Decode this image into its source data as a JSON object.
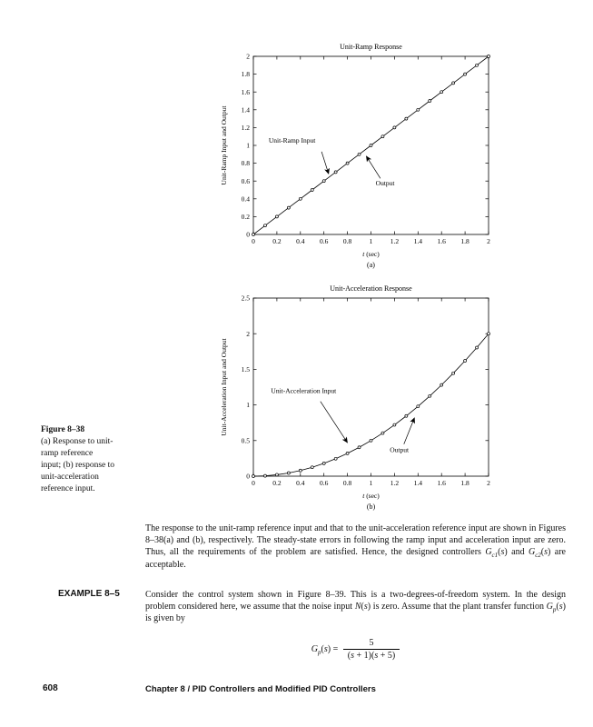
{
  "page": {
    "number": "608",
    "footer": "Chapter 8  /  PID Controllers and Modified PID Controllers"
  },
  "figure_caption": {
    "label": "Figure 8–38",
    "lines": [
      "(a) Response to unit-",
      "ramp reference",
      "input; (b) response to",
      "unit-acceleration",
      "reference input."
    ]
  },
  "paragraph1": [
    {
      "t": "The response to the unit-ramp reference input and that to the unit-acceleration reference input are shown in Figures 8–38(a) and (b), respectively. The steady-state errors in following the ramp input and acceleration input are zero. Thus, all the requirements of the problem are satisfied. Hence, the designed controllers "
    },
    {
      "t": "G",
      "i": 1
    },
    {
      "t": "c1",
      "sub": 1,
      "i": 1
    },
    {
      "t": "("
    },
    {
      "t": "s",
      "i": 1
    },
    {
      "t": ")"
    },
    {
      "t": " and "
    },
    {
      "t": "G",
      "i": 1
    },
    {
      "t": "c2",
      "sub": 1,
      "i": 1
    },
    {
      "t": "("
    },
    {
      "t": "s",
      "i": 1
    },
    {
      "t": ")"
    },
    {
      "t": " are acceptable."
    }
  ],
  "example": {
    "label": "EXAMPLE 8–5",
    "text": [
      {
        "t": "Consider the control system shown in Figure 8–39. This is a two-degrees-of-freedom system. In the design problem considered here, we assume that the noise input "
      },
      {
        "t": "N",
        "i": 1
      },
      {
        "t": "("
      },
      {
        "t": "s",
        "i": 1
      },
      {
        "t": ")"
      },
      {
        "t": " is zero. Assume that the plant transfer function "
      },
      {
        "t": "G",
        "i": 1
      },
      {
        "t": "p",
        "sub": 1,
        "i": 1
      },
      {
        "t": "("
      },
      {
        "t": "s",
        "i": 1
      },
      {
        "t": ")"
      },
      {
        "t": " is given by"
      }
    ]
  },
  "formula": {
    "lhs": [
      {
        "t": "G",
        "i": 1
      },
      {
        "t": "p",
        "sub": 1,
        "i": 1
      },
      {
        "t": "("
      },
      {
        "t": "s",
        "i": 1
      },
      {
        "t": ") = "
      }
    ],
    "numerator": [
      {
        "t": "5"
      }
    ],
    "denominator": [
      {
        "t": "("
      },
      {
        "t": "s",
        "i": 1
      },
      {
        "t": " + 1)("
      },
      {
        "t": "s",
        "i": 1
      },
      {
        "t": " + 5)"
      }
    ]
  },
  "chart_data": [
    {
      "type": "line",
      "title": "Unit-Ramp Response",
      "ylabel": "Unit-Ramp Input and Output",
      "xlabel_var": "t",
      "xlabel_rest": "(sec)",
      "sublabel": "(a)",
      "xlim": [
        0,
        2
      ],
      "ylim": [
        0,
        2
      ],
      "grid": false,
      "legend": "none",
      "xtick_vals": [
        0,
        0.2,
        0.4,
        0.6,
        0.8,
        1,
        1.2,
        1.4,
        1.6,
        1.8,
        2
      ],
      "xtick_labels": [
        "0",
        "0.2",
        "0.4",
        "0.6",
        "0.8",
        "1",
        "1.2",
        "1.4",
        "1.6",
        "1.8",
        "2"
      ],
      "ytick_vals": [
        0,
        0.2,
        0.4,
        0.6,
        0.8,
        1,
        1.2,
        1.4,
        1.6,
        1.8,
        2
      ],
      "ytick_labels": [
        "0",
        "0.2",
        "0.4",
        "0.6",
        "0.8",
        "1",
        "1.2",
        "1.4",
        "1.6",
        "1.8",
        "2"
      ],
      "series": [
        {
          "name": "Unit-ramp input and output (overlapping)",
          "marker": "circle",
          "x": [
            0,
            0.1,
            0.2,
            0.3,
            0.4,
            0.5,
            0.6,
            0.7,
            0.8,
            0.9,
            1,
            1.1,
            1.2,
            1.3,
            1.4,
            1.5,
            1.6,
            1.7,
            1.8,
            1.9,
            2
          ],
          "y": [
            0,
            0.1,
            0.2,
            0.3,
            0.4,
            0.5,
            0.6,
            0.7,
            0.8,
            0.9,
            1,
            1.1,
            1.2,
            1.3,
            1.4,
            1.5,
            1.6,
            1.7,
            1.8,
            1.9,
            2
          ]
        }
      ],
      "annotations": [
        {
          "text": "Unit-Ramp Input",
          "tx": 0.13,
          "ty": 1.03,
          "x1": 0.58,
          "y1": 0.93,
          "x2": 0.64,
          "y2": 0.68
        },
        {
          "text": "Output",
          "tx": 1.04,
          "ty": 0.55,
          "x1": 1.08,
          "y1": 0.63,
          "x2": 0.96,
          "y2": 0.88
        }
      ]
    },
    {
      "type": "line",
      "title": "Unit-Acceleration Response",
      "ylabel": "Unit-Acceleration Input and Output",
      "xlabel_var": "t",
      "xlabel_rest": "(sec)",
      "sublabel": "(b)",
      "xlim": [
        0,
        2
      ],
      "ylim": [
        0,
        2.5
      ],
      "grid": false,
      "legend": "none",
      "xtick_vals": [
        0,
        0.2,
        0.4,
        0.6,
        0.8,
        1,
        1.2,
        1.4,
        1.6,
        1.8,
        2
      ],
      "xtick_labels": [
        "0",
        "0.2",
        "0.4",
        "0.6",
        "0.8",
        "1",
        "1.2",
        "1.4",
        "1.6",
        "1.8",
        "2"
      ],
      "ytick_vals": [
        0,
        0.5,
        1,
        1.5,
        2,
        2.5
      ],
      "ytick_labels": [
        "0",
        "0.5",
        "1",
        "1.5",
        "2",
        "2.5"
      ],
      "series": [
        {
          "name": "Unit-acceleration input and output (overlapping, y = t²/2)",
          "marker": "circle",
          "x": [
            0,
            0.1,
            0.2,
            0.3,
            0.4,
            0.5,
            0.6,
            0.7,
            0.8,
            0.9,
            1,
            1.1,
            1.2,
            1.3,
            1.4,
            1.5,
            1.6,
            1.7,
            1.8,
            1.9,
            2
          ],
          "y": [
            0,
            0.005,
            0.02,
            0.045,
            0.08,
            0.125,
            0.18,
            0.245,
            0.32,
            0.405,
            0.5,
            0.605,
            0.72,
            0.845,
            0.98,
            1.125,
            1.28,
            1.445,
            1.62,
            1.805,
            2
          ]
        }
      ],
      "annotations": [
        {
          "text": "Unit-Acceleration Input",
          "tx": 0.15,
          "ty": 1.17,
          "x1": 0.57,
          "y1": 1.05,
          "x2": 0.8,
          "y2": 0.47
        },
        {
          "text": "Output",
          "tx": 1.16,
          "ty": 0.34,
          "x1": 1.28,
          "y1": 0.45,
          "x2": 1.37,
          "y2": 0.82
        }
      ]
    }
  ]
}
